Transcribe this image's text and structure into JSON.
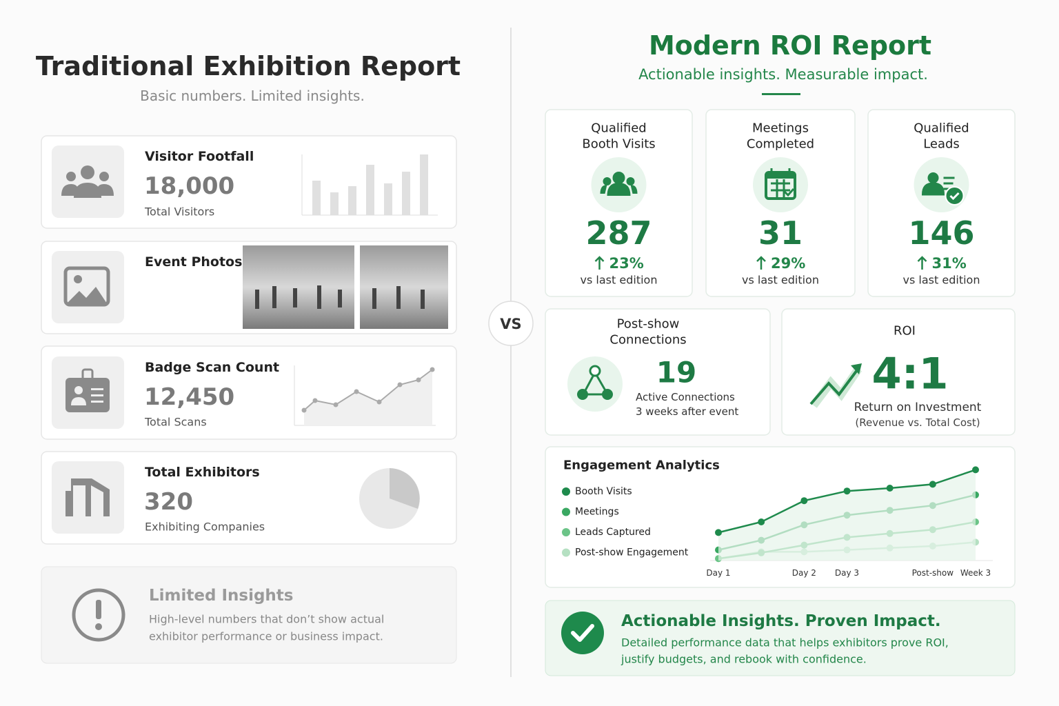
{
  "left": {
    "title": "Traditional Exhibition Report",
    "subtitle": "Basic numbers. Limited insights.",
    "cards": [
      {
        "title": "Visitor Footfall",
        "value": "18,000",
        "label": "Total Visitors"
      },
      {
        "title": "Event Photos"
      },
      {
        "title": "Badge Scan Count",
        "value": "12,450",
        "label": "Total Scans"
      },
      {
        "title": "Total Exhibitors",
        "value": "320",
        "label": "Exhibiting Companies"
      }
    ],
    "insight": {
      "title": "Limited Insights",
      "text": [
        "High-level numbers that don’t show actual",
        "exhibitor performance or business impact."
      ]
    }
  },
  "vs": "VS",
  "right": {
    "title": "Modern ROI Report",
    "subtitle": "Actionable insights. Measurable impact.",
    "metrics": [
      {
        "title": [
          "Qualified",
          "Booth Visits"
        ],
        "value": "287",
        "change": "23%",
        "note": "vs last edition"
      },
      {
        "title": [
          "Meetings",
          "Completed"
        ],
        "value": "31",
        "change": "29%",
        "note": "vs last edition"
      },
      {
        "title": [
          "Qualified",
          "Leads"
        ],
        "value": "146",
        "change": "31%",
        "note": "vs last edition"
      }
    ],
    "connections": {
      "title": [
        "Post-show",
        "Connections"
      ],
      "value": "19",
      "label": "Active Connections",
      "note": "3 weeks after event"
    },
    "roi": {
      "title": "ROI",
      "value": "4:1",
      "label": "Return on Investment",
      "note": "(Revenue vs. Total Cost)"
    },
    "engagement": {
      "type": "line",
      "title": "Engagement Analytics",
      "categories": [
        "Day 1",
        null,
        "Day 2",
        "Day 3",
        null,
        "Post-show",
        "Week 3"
      ],
      "ylim": [
        0,
        100
      ],
      "series": [
        {
          "name": "Booth Visits",
          "color": "#1e8a4c",
          "values": [
            29,
            40,
            62,
            72,
            75,
            79,
            94
          ]
        },
        {
          "name": "Meetings",
          "color": "#3aa862",
          "values": [
            11,
            21,
            37,
            47,
            52,
            57,
            68
          ]
        },
        {
          "name": "Leads Captured",
          "color": "#6cc488",
          "values": [
            2,
            8,
            16,
            24,
            28,
            32,
            40
          ]
        },
        {
          "name": "Post-show Engagement",
          "color": "#b5e0c2",
          "values": [
            2,
            9,
            9,
            11,
            13,
            15,
            19
          ]
        }
      ]
    },
    "callout": {
      "title": "Actionable Insights. Proven Impact.",
      "text": [
        "Detailed performance data that helps exhibitors prove ROI,",
        "justify budgets, and rebook with confidence."
      ]
    }
  }
}
